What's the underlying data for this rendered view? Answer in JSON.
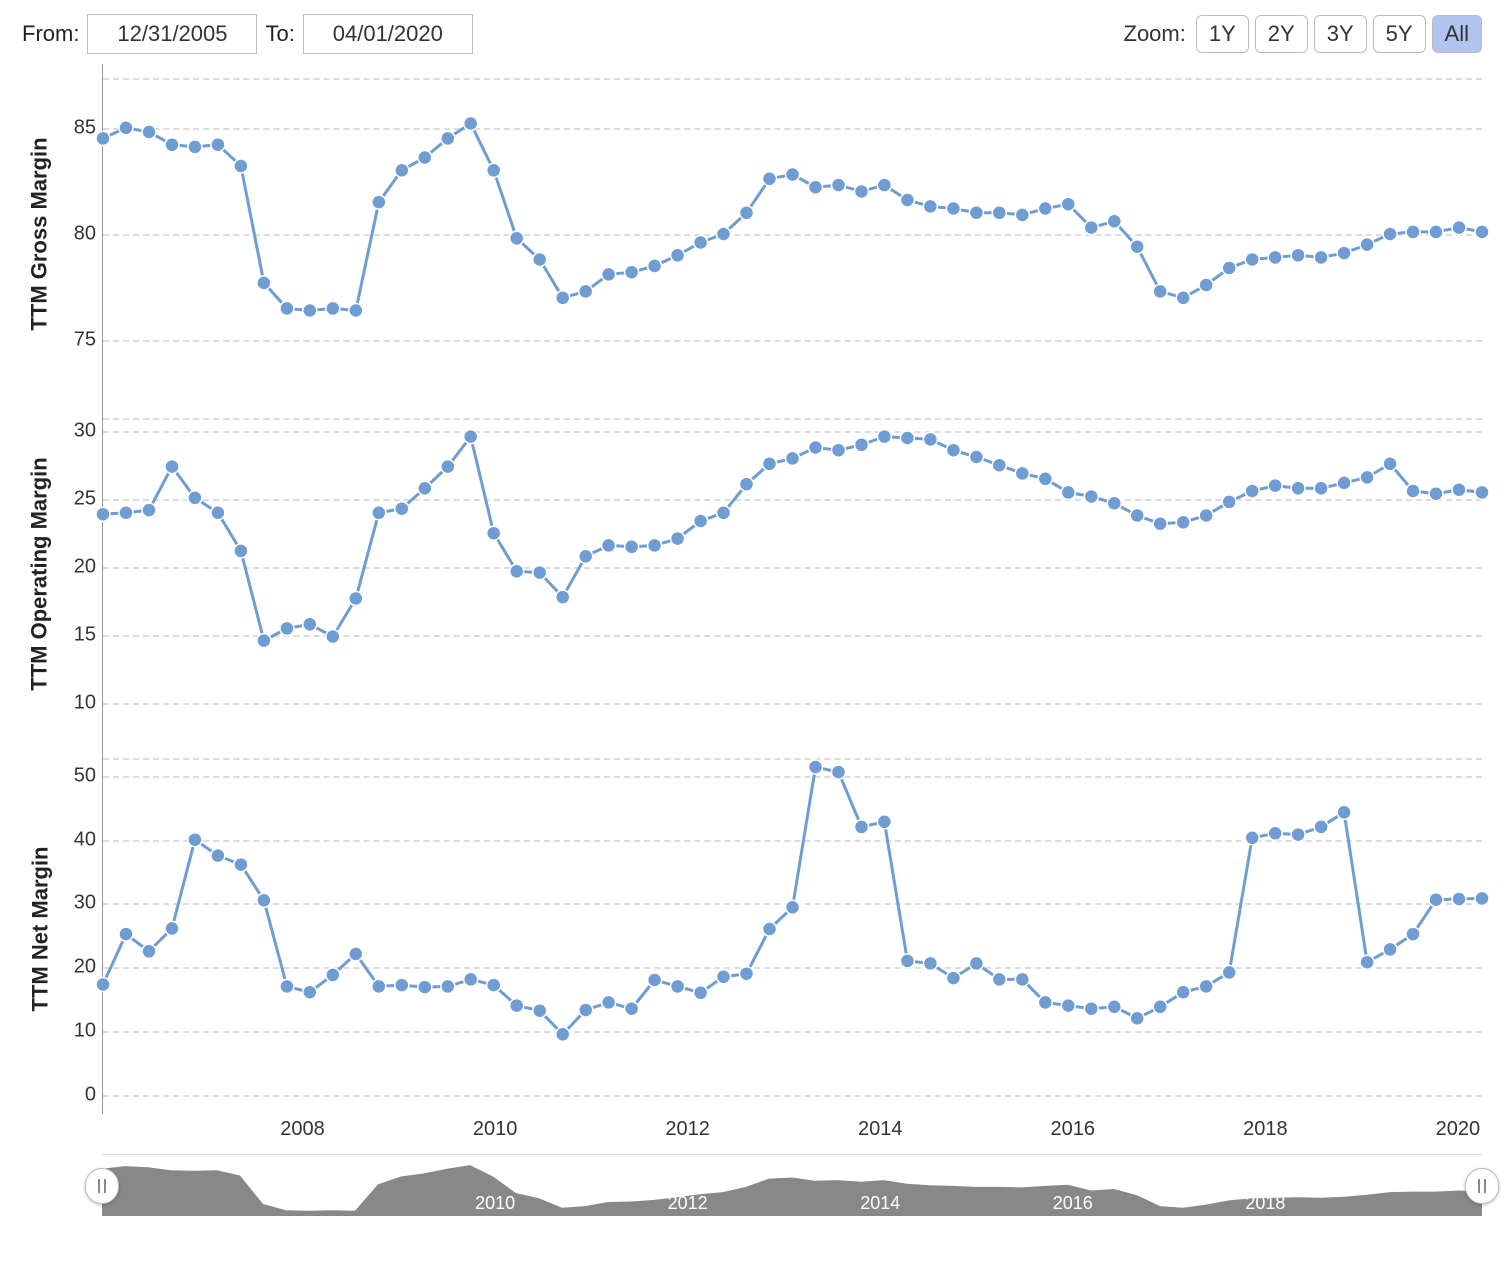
{
  "controls": {
    "from_label": "From:",
    "to_label": "To:",
    "from_value": "12/31/2005",
    "to_value": "04/01/2020",
    "zoom_label": "Zoom:",
    "zoom_buttons": [
      "1Y",
      "2Y",
      "3Y",
      "5Y",
      "All"
    ],
    "zoom_active_index": 4
  },
  "style": {
    "line_color": "#6f9cd2",
    "marker_fill": "#6f9cd2",
    "marker_stroke": "#ffffff",
    "marker_radius": 7,
    "line_width": 3,
    "grid_color": "#dcdcdc",
    "axis_color": "#999999",
    "nav_fill": "#7b7b7b",
    "nav_handle_bg": "#ffffff"
  },
  "time": {
    "x_start_year": 2005.917,
    "x_end_year": 2020.25,
    "x_ticks": [
      2008,
      2010,
      2012,
      2014,
      2016,
      2018,
      2020
    ],
    "quarters_per_year": 4
  },
  "charts": [
    {
      "id": "gross",
      "ylabel": "TTM Gross Margin",
      "ymin": 72,
      "ymax": 88,
      "yticks": [
        75,
        80,
        85
      ],
      "values": [
        84.5,
        85.0,
        84.8,
        84.2,
        84.1,
        84.2,
        83.2,
        77.7,
        76.5,
        76.4,
        76.5,
        76.4,
        81.5,
        83.0,
        83.6,
        84.5,
        85.2,
        83.0,
        79.8,
        78.8,
        77.0,
        77.3,
        78.1,
        78.2,
        78.5,
        79.0,
        79.6,
        80.0,
        81.0,
        82.6,
        82.8,
        82.2,
        82.3,
        82.0,
        82.3,
        81.6,
        81.3,
        81.2,
        81.0,
        81.0,
        80.9,
        81.2,
        81.4,
        80.3,
        80.6,
        79.4,
        77.3,
        77.0,
        77.6,
        78.4,
        78.8,
        78.9,
        79.0,
        78.9,
        79.1,
        79.5,
        80.0,
        80.1,
        80.1,
        80.3,
        80.1
      ]
    },
    {
      "id": "operating",
      "ylabel": "TTM Operating Margin",
      "ymin": 7,
      "ymax": 32,
      "yticks": [
        10,
        15,
        20,
        25,
        30
      ],
      "values": [
        23.9,
        24.0,
        24.2,
        27.4,
        25.1,
        24.0,
        21.2,
        14.6,
        15.5,
        15.8,
        14.9,
        17.7,
        24.0,
        24.3,
        25.8,
        27.4,
        29.6,
        22.5,
        19.7,
        19.6,
        17.8,
        20.8,
        21.6,
        21.5,
        21.6,
        22.1,
        23.4,
        24.0,
        26.1,
        27.6,
        28.0,
        28.8,
        28.6,
        29.0,
        29.6,
        29.5,
        29.4,
        28.6,
        28.1,
        27.5,
        26.9,
        26.5,
        25.5,
        25.2,
        24.7,
        23.8,
        23.2,
        23.3,
        23.8,
        24.8,
        25.6,
        26.0,
        25.8,
        25.8,
        26.2,
        26.6,
        27.6,
        25.6,
        25.4,
        25.7,
        25.5
      ]
    },
    {
      "id": "net",
      "ylabel": "TTM Net Margin",
      "ymin": -3,
      "ymax": 55,
      "yticks": [
        0,
        10,
        20,
        30,
        40,
        50
      ],
      "values": [
        17.3,
        25.2,
        22.5,
        26.1,
        40.0,
        37.5,
        36.1,
        30.5,
        17.0,
        16.1,
        18.8,
        22.1,
        17.0,
        17.2,
        16.9,
        17.0,
        18.1,
        17.2,
        14.0,
        13.2,
        9.5,
        13.3,
        14.5,
        13.5,
        18.0,
        17.0,
        16.0,
        18.5,
        19.0,
        26.0,
        29.4,
        51.4,
        50.6,
        42.0,
        42.8,
        21.0,
        20.6,
        18.3,
        20.6,
        18.1,
        18.1,
        14.5,
        14.0,
        13.5,
        13.8,
        12.0,
        13.8,
        16.1,
        17.0,
        19.2,
        40.3,
        41.0,
        40.8,
        42.0,
        44.3,
        20.8,
        22.8,
        25.2,
        30.6,
        30.7,
        30.8
      ]
    }
  ],
  "navigator": {
    "ticks": [
      2008,
      2010,
      2012,
      2014,
      2016,
      2018
    ],
    "shape_refs_chart": 0
  }
}
